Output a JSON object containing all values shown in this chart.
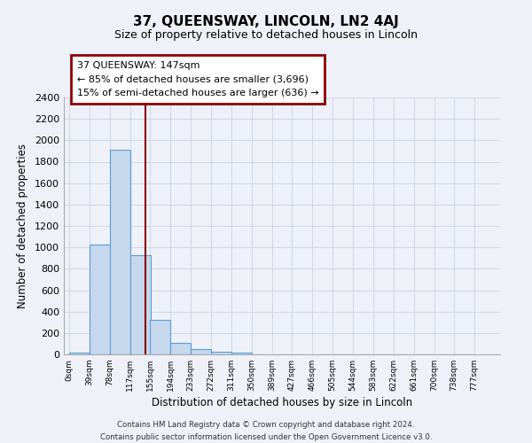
{
  "title": "37, QUEENSWAY, LINCOLN, LN2 4AJ",
  "subtitle": "Size of property relative to detached houses in Lincoln",
  "xlabel": "Distribution of detached houses by size in Lincoln",
  "ylabel": "Number of detached properties",
  "footer_line1": "Contains HM Land Registry data © Crown copyright and database right 2024.",
  "footer_line2": "Contains public sector information licensed under the Open Government Licence v3.0.",
  "bin_labels": [
    "0sqm",
    "39sqm",
    "78sqm",
    "117sqm",
    "155sqm",
    "194sqm",
    "233sqm",
    "272sqm",
    "311sqm",
    "350sqm",
    "389sqm",
    "427sqm",
    "466sqm",
    "505sqm",
    "544sqm",
    "583sqm",
    "622sqm",
    "661sqm",
    "700sqm",
    "738sqm",
    "777sqm"
  ],
  "bin_edges": [
    0,
    39,
    78,
    117,
    155,
    194,
    233,
    272,
    311,
    350,
    389,
    427,
    466,
    505,
    544,
    583,
    622,
    661,
    700,
    738,
    777
  ],
  "bar_heights": [
    20,
    1030,
    1910,
    930,
    325,
    110,
    50,
    25,
    15,
    0,
    0,
    0,
    0,
    0,
    0,
    0,
    0,
    0,
    0,
    0
  ],
  "bar_color": "#c5d8ed",
  "bar_edge_color": "#5b9bd5",
  "vline_x": 147,
  "vline_color": "#8b0000",
  "ylim": [
    0,
    2400
  ],
  "yticks": [
    0,
    200,
    400,
    600,
    800,
    1000,
    1200,
    1400,
    1600,
    1800,
    2000,
    2200,
    2400
  ],
  "annotation_title": "37 QUEENSWAY: 147sqm",
  "annotation_line1": "← 85% of detached houses are smaller (3,696)",
  "annotation_line2": "15% of semi-detached houses are larger (636) →",
  "bg_color": "#eef2f8",
  "plot_bg_color": "#eef2f8",
  "grid_color": "#d0d8e8"
}
